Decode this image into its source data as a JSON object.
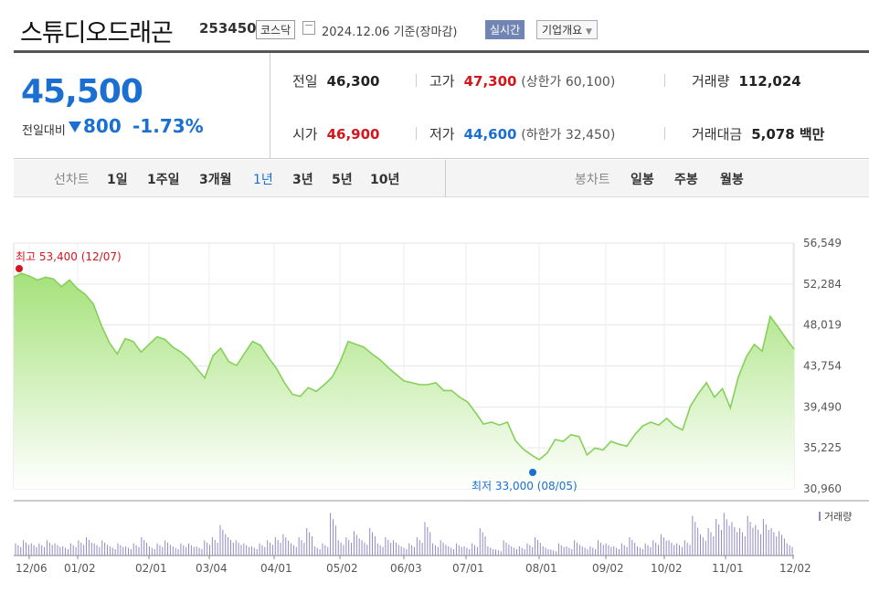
{
  "header": {
    "name": "스튜디오드래곤",
    "code": "253450",
    "market": "코스닥",
    "date": "2024.12.06 기준(장마감)",
    "realtime": "실시간",
    "company": "기업개요"
  },
  "price": {
    "current": "45,500",
    "diff_label": "전일대비",
    "diff": "800",
    "pct": "-1.73%"
  },
  "stats": {
    "prev_label": "전일",
    "prev": "46,300",
    "high_label": "고가",
    "high": "47,300",
    "upper": "(상한가 60,100)",
    "vol_label": "거래량",
    "vol": "112,024",
    "open_label": "시가",
    "open": "46,900",
    "low_label": "저가",
    "low": "44,600",
    "lower": "(하한가 32,450)",
    "amt_label": "거래대금",
    "amt": "5,078 백만"
  },
  "tabs": {
    "line_group": "선차트",
    "line": [
      "1일",
      "1주일",
      "3개월",
      "1년",
      "3년",
      "5년",
      "10년"
    ],
    "selected": "1년",
    "candle_group": "봉차트",
    "candle": [
      "일봉",
      "주봉",
      "월봉"
    ]
  },
  "colors": {
    "up": "#d4161c",
    "down": "#1a6fd0",
    "line": "#86d05a",
    "volume": "#9089c4"
  },
  "chart_data": {
    "type": "area",
    "y_ticks": [
      "56,549",
      "52,284",
      "48,019",
      "43,754",
      "39,490",
      "35,225",
      "30,960"
    ],
    "ylim": [
      30960,
      56549
    ],
    "x_labels": [
      "12/06",
      "01/02",
      "02/01",
      "03/04",
      "04/01",
      "05/02",
      "06/03",
      "07/01",
      "08/01",
      "09/02",
      "10/02",
      "11/01",
      "12/02"
    ],
    "high_label": "최고 53,400 (12/07)",
    "low_label": "최저 33,000 (08/05)",
    "volume_label": "거래량",
    "values": [
      53000,
      53400,
      53100,
      52700,
      53000,
      52800,
      52000,
      52700,
      51800,
      51200,
      50200,
      48000,
      46200,
      45000,
      46600,
      46300,
      45200,
      46000,
      46800,
      46500,
      45700,
      45200,
      44500,
      43500,
      42500,
      44800,
      45600,
      44200,
      43800,
      45100,
      46300,
      45900,
      44600,
      43500,
      42000,
      40800,
      40600,
      41500,
      41100,
      41800,
      42600,
      44200,
      46300,
      46000,
      45700,
      45000,
      44400,
      43600,
      42900,
      42200,
      42000,
      41800,
      41800,
      42000,
      41200,
      41200,
      40500,
      40000,
      38900,
      37700,
      37900,
      37600,
      37900,
      36000,
      35100,
      34500,
      34000,
      34700,
      36100,
      35900,
      36600,
      36400,
      34500,
      35200,
      35000,
      35900,
      35600,
      35400,
      36600,
      37500,
      37900,
      37600,
      38300,
      37500,
      37100,
      39600,
      40900,
      42000,
      40500,
      41400,
      39400,
      42600,
      44700,
      46000,
      45300,
      48900,
      47800,
      46600,
      45500
    ],
    "volume": [
      4,
      5,
      4,
      4,
      5,
      4,
      3,
      4,
      5,
      6,
      4,
      5,
      3,
      4,
      3,
      4,
      6,
      3,
      4,
      5,
      3,
      4,
      4,
      3,
      5,
      6,
      10,
      6,
      5,
      4,
      3,
      4,
      5,
      6,
      7,
      4,
      6,
      9,
      3,
      4,
      14,
      5,
      6,
      8,
      5,
      9,
      4,
      6,
      5,
      3,
      4,
      6,
      11,
      4,
      5,
      3,
      4,
      3,
      4,
      9,
      3,
      2,
      5,
      3,
      3,
      4,
      6,
      3,
      2,
      4,
      3,
      5,
      3,
      3,
      5,
      4,
      3,
      4,
      6,
      3,
      4,
      5,
      7,
      5,
      4,
      5,
      13,
      7,
      9,
      12,
      14,
      11,
      9,
      13,
      10,
      12,
      9,
      8,
      4
    ]
  }
}
